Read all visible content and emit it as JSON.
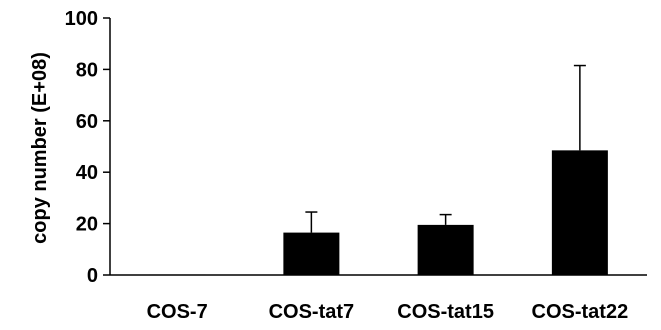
{
  "chart_data": {
    "type": "bar",
    "title": "",
    "xlabel": "",
    "ylabel": "copy number (E+08)",
    "categories": [
      "COS-7",
      "COS-tat7",
      "COS-tat15",
      "COS-tat22"
    ],
    "values": [
      0.2,
      16.5,
      19.5,
      48.5
    ],
    "error_upper": [
      0,
      8,
      4,
      33
    ],
    "ylim": [
      0,
      100
    ],
    "yticks": [
      "0",
      "20",
      "40",
      "60",
      "80",
      "100"
    ],
    "grid": false,
    "bar_color": "#000000"
  }
}
